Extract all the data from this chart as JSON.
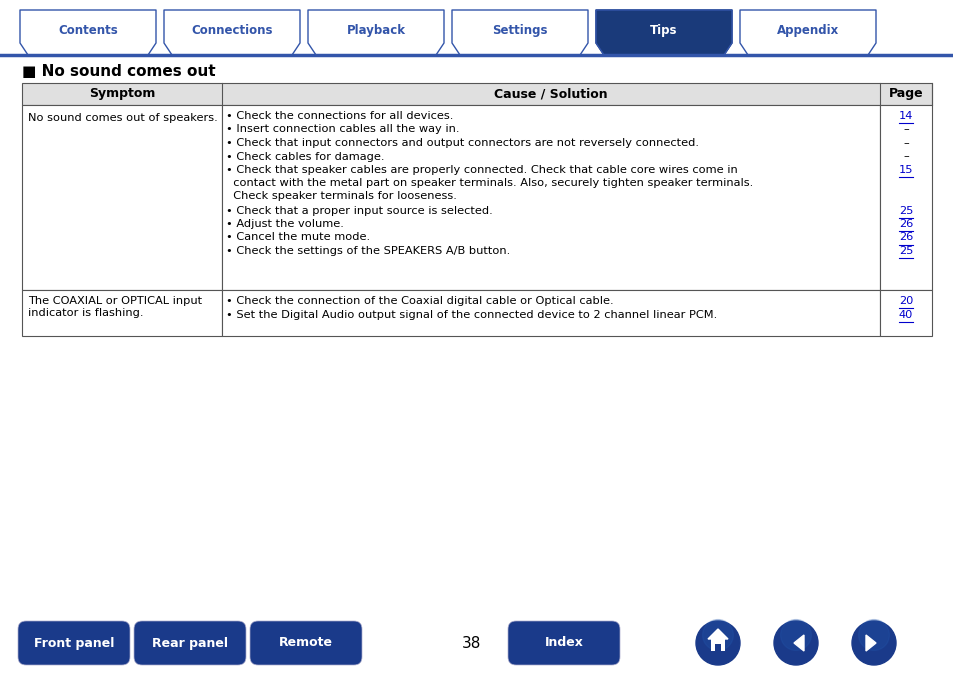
{
  "bg_color": "#ffffff",
  "page_number": "38",
  "tabs": [
    "Contents",
    "Connections",
    "Playback",
    "Settings",
    "Tips",
    "Appendix"
  ],
  "active_tab": "Tips",
  "active_tab_color": "#1a3a7a",
  "inactive_tab_color": "#ffffff",
  "inactive_tab_text_color": "#3355aa",
  "active_tab_text_color": "#ffffff",
  "tab_border_color": "#3355aa",
  "section_title": "■ No sound comes out",
  "section_title_color": "#000000",
  "header_bg": "#e0e0e0",
  "table_border_color": "#555555",
  "col_headers": [
    "Symptom",
    "Cause / Solution",
    "Page"
  ],
  "row1_symptom": "No sound comes out of speakers.",
  "row1_causes": [
    [
      "• Check the connections for all devices.",
      1
    ],
    [
      "• Insert connection cables all the way in.",
      1
    ],
    [
      "• Check that input connectors and output connectors are not reversely connected.",
      1
    ],
    [
      "• Check cables for damage.",
      1
    ],
    [
      "• Check that speaker cables are properly connected. Check that cable core wires come in\n  contact with the metal part on speaker terminals. Also, securely tighten speaker terminals.\n  Check speaker terminals for looseness.",
      3
    ],
    [
      "• Check that a proper input source is selected.",
      1
    ],
    [
      "• Adjust the volume.",
      1
    ],
    [
      "• Cancel the mute mode.",
      1
    ],
    [
      "• Check the settings of the SPEAKERS A/B button.",
      1
    ]
  ],
  "row1_pages": [
    "14",
    "–",
    "–",
    "–",
    "15",
    "25",
    "26",
    "26",
    "25"
  ],
  "row2_symptom": "The COAXIAL or OPTICAL input\nindicator is flashing.",
  "row2_causes": [
    "• Check the connection of the Coaxial digital cable or Optical cable.",
    "• Set the Digital Audio output signal of the connected device to 2 channel linear PCM."
  ],
  "row2_pages": [
    "20",
    "40"
  ],
  "bottom_buttons": [
    "Front panel",
    "Rear panel",
    "Remote",
    "Index"
  ],
  "bottom_button_color": "#1a3a8a",
  "bottom_button_text_color": "#ffffff",
  "nav_button_color": "#1a3a8a",
  "link_color": "#0000cc"
}
